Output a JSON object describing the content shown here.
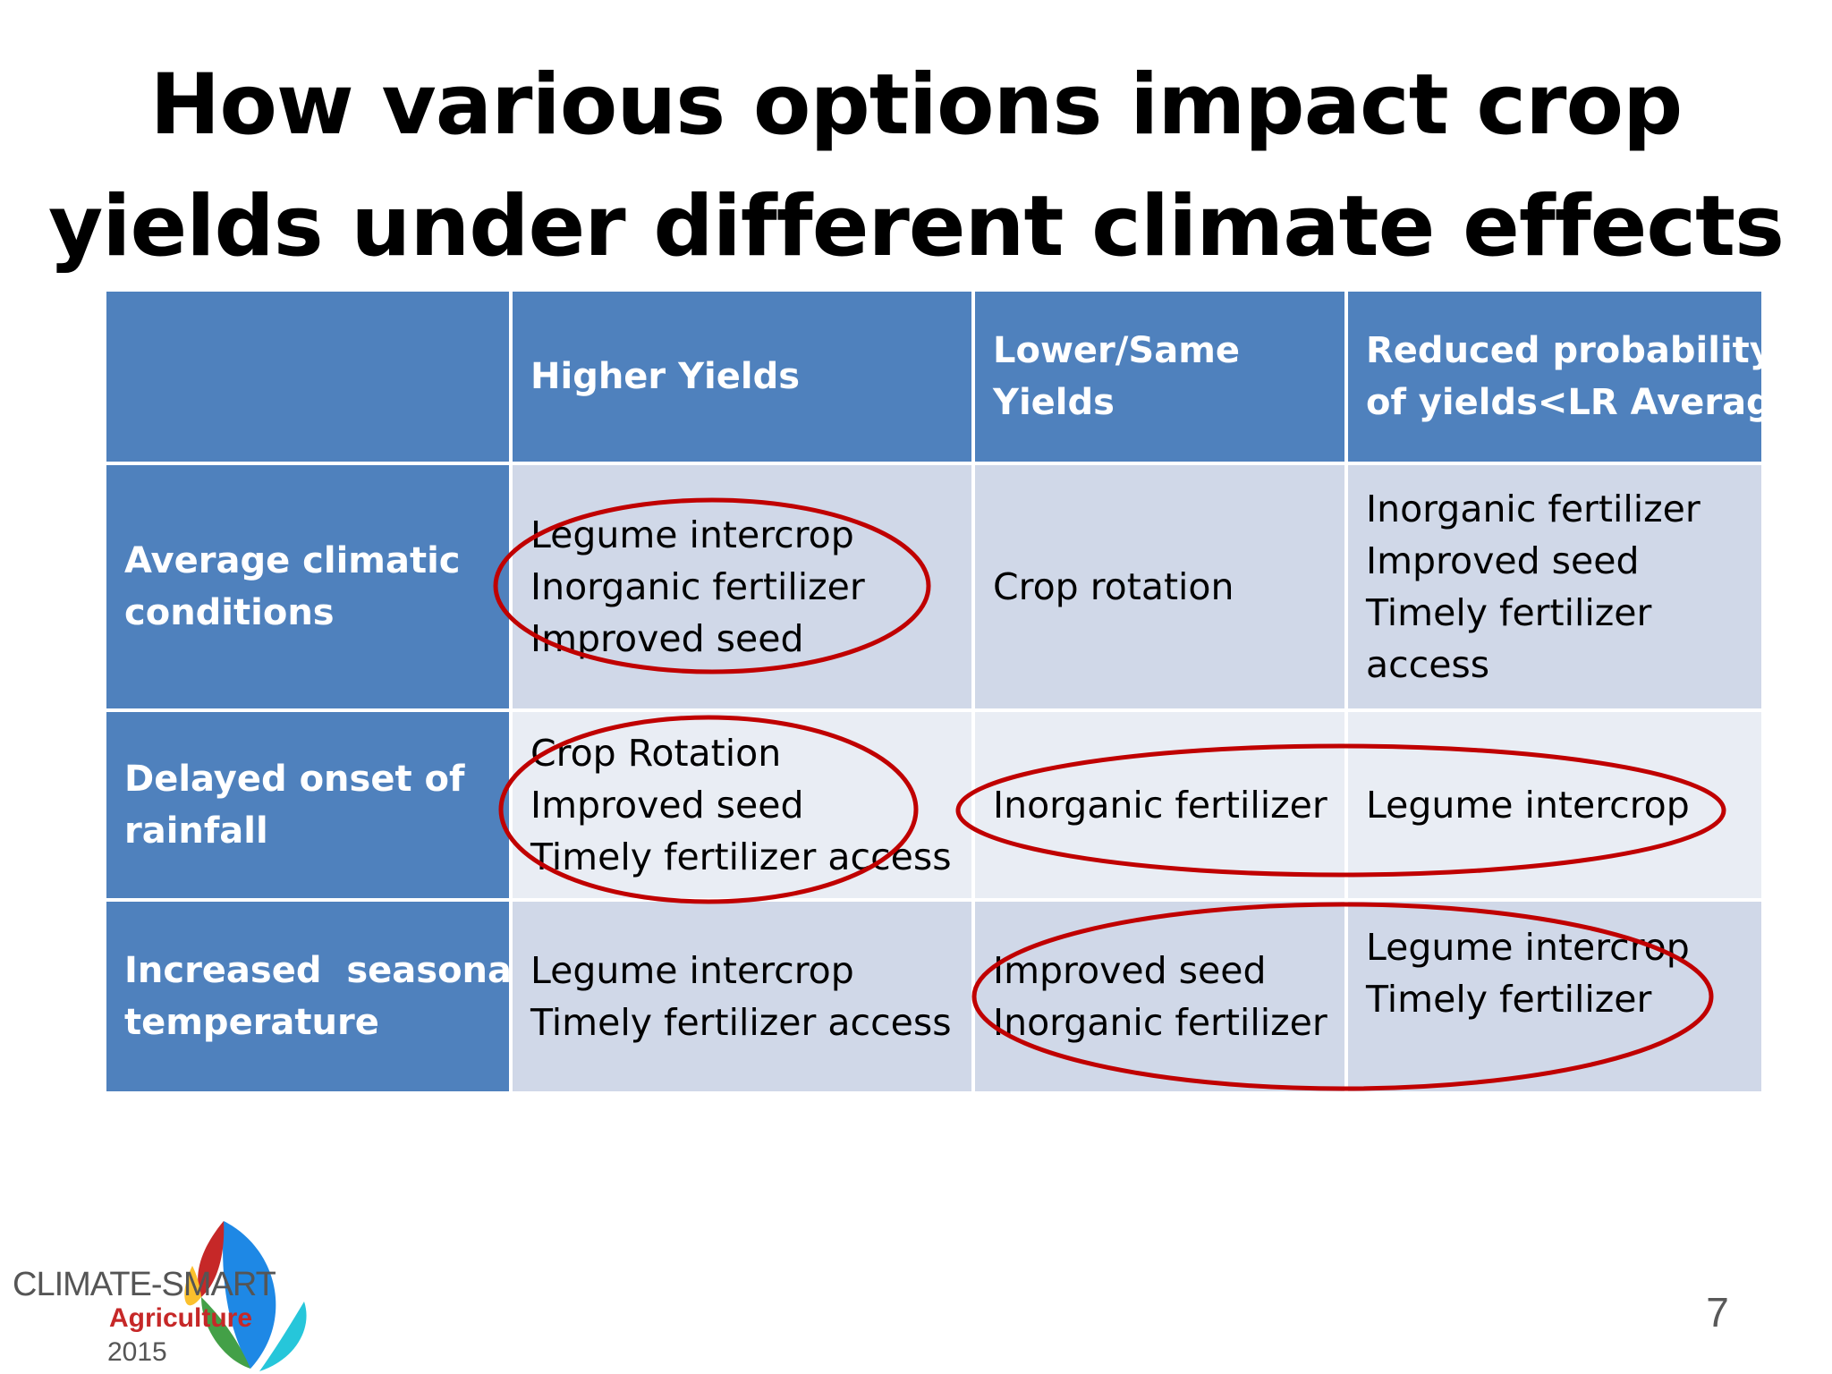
{
  "slide": {
    "title_line1": "How various options impact crop",
    "title_line2": "yields under different climate effects",
    "page_number": "7"
  },
  "table": {
    "headers": [
      "",
      "Higher Yields",
      "Lower/Same Yields",
      "Reduced probability of yields<LR Average"
    ],
    "header_lines": {
      "col1": [
        "Higher Yields"
      ],
      "col2": [
        "Lower/Same",
        "Yields"
      ],
      "col3": [
        "Reduced probability",
        "of yields<LR Average"
      ]
    },
    "rows": [
      {
        "label": [
          "Average climatic",
          "conditions"
        ],
        "higher": [
          "Legume intercrop",
          "Inorganic fertilizer",
          "Improved seed"
        ],
        "lower": [
          "Crop rotation"
        ],
        "reduced": [
          "Inorganic fertilizer",
          "Improved seed",
          "Timely fertilizer",
          "access"
        ]
      },
      {
        "label": [
          "Delayed onset of",
          "rainfall"
        ],
        "higher": [
          "Crop Rotation",
          "Improved seed",
          "Timely fertilizer access"
        ],
        "lower": [
          "Inorganic fertilizer"
        ],
        "reduced": [
          "Legume intercrop"
        ]
      },
      {
        "label": [
          "Increased  seasonal",
          "temperature"
        ],
        "higher": [
          "Legume intercrop",
          "Timely fertilizer access"
        ],
        "lower": [
          "Improved seed",
          "Inorganic fertilizer"
        ],
        "reduced": [
          "Legume intercrop",
          "Timely fertilizer"
        ]
      }
    ]
  },
  "logo": {
    "line1": "CLIMATE-SMART",
    "line2": "Agriculture",
    "line3": "2015"
  },
  "colors": {
    "header_blue": "#4f81bd",
    "cell_light": "#d0d8e8",
    "cell_lighter": "#e9edf4",
    "ring_red": "#c00000"
  }
}
